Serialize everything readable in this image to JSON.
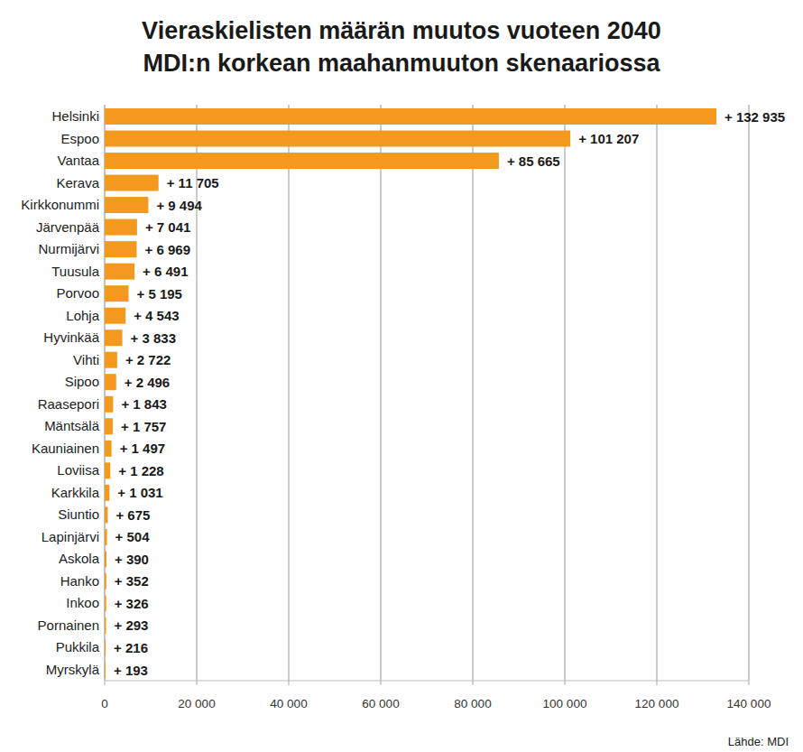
{
  "chart_data": {
    "type": "bar",
    "orientation": "horizontal",
    "title": "Vieraskielisten määrän muutos vuoteen 2040\nMDI:n korkean maahanmuuton skenaariossa",
    "source": "Lähde: MDI",
    "categories": [
      "Helsinki",
      "Espoo",
      "Vantaa",
      "Kerava",
      "Kirkkonummi",
      "Järvenpää",
      "Nurmijärvi",
      "Tuusula",
      "Porvoo",
      "Lohja",
      "Hyvinkää",
      "Vihti",
      "Sipoo",
      "Raasepori",
      "Mäntsälä",
      "Kauniainen",
      "Loviisa",
      "Karkkila",
      "Siuntio",
      "Lapinjärvi",
      "Askola",
      "Hanko",
      "Inkoo",
      "Pornainen",
      "Pukkila",
      "Myrskylä"
    ],
    "values": [
      132935,
      101207,
      85665,
      11705,
      9494,
      7041,
      6969,
      6491,
      5195,
      4543,
      3833,
      2722,
      2496,
      1843,
      1757,
      1497,
      1228,
      1031,
      675,
      504,
      390,
      352,
      326,
      293,
      216,
      193
    ],
    "value_labels": [
      "+ 132 935",
      "+ 101 207",
      "+ 85 665",
      "+ 11 705",
      "+ 9 494",
      "+ 7 041",
      "+ 6 969",
      "+ 6 491",
      "+ 5 195",
      "+ 4 543",
      "+ 3 833",
      "+ 2 722",
      "+ 2 496",
      "+ 1 843",
      "+ 1 757",
      "+ 1 497",
      "+ 1 228",
      "+ 1 031",
      "+ 675",
      "+ 504",
      "+ 390",
      "+ 352",
      "+ 326",
      "+ 293",
      "+ 216",
      "+ 193"
    ],
    "color": "#f39a1e",
    "xlim": [
      0,
      140000
    ],
    "xticks": [
      0,
      {
        "value": 20000,
        "label": "20 000"
      },
      {
        "value": 40000,
        "label": "40 000"
      },
      {
        "value": 60000,
        "label": "60 000"
      },
      {
        "value": 80000,
        "label": "80 000"
      },
      {
        "value": 100000,
        "label": "100 000"
      },
      {
        "value": 120000,
        "label": "120 000"
      },
      {
        "value": 140000,
        "label": "140 000"
      }
    ],
    "grid": true,
    "data_labels": true
  }
}
